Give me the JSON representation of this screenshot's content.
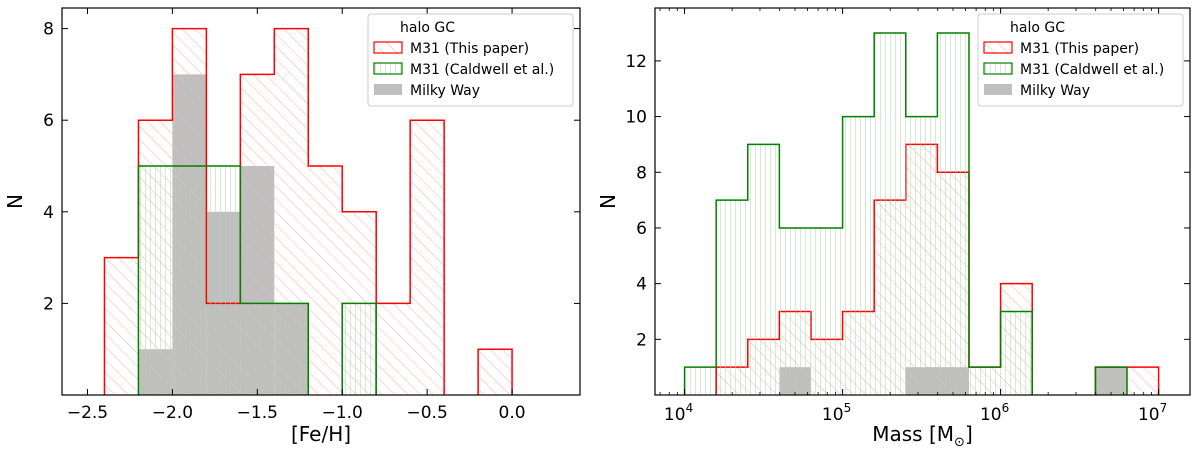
{
  "colors": {
    "m31_this": "#ff0000",
    "m31_caldwell": "#008000",
    "milky_way": "#bfbfbf",
    "hatch": "#f4b0b0",
    "hatch_green": "#a8d6a8"
  },
  "chart_data": [
    {
      "type": "bar",
      "subtype": "step-histogram",
      "xlabel": "[Fe/H]",
      "ylabel": "N",
      "xlim": [
        -2.65,
        0.4
      ],
      "ylim": [
        0,
        8.45
      ],
      "xticks": [
        -2.5,
        -2.0,
        -1.5,
        -1.0,
        -0.5,
        0.0
      ],
      "xtick_labels": [
        "−2.5",
        "−2.0",
        "−1.5",
        "−1.0",
        "−0.5",
        "0.0"
      ],
      "yticks": [
        2,
        4,
        6,
        8
      ],
      "ytick_labels": [
        "2",
        "4",
        "6",
        "8"
      ],
      "legend": {
        "title": "halo GC",
        "placement": "top-right",
        "entries": [
          "M31 (This paper)",
          "M31 (Caldwell et al.)",
          "Milky Way"
        ]
      },
      "series": [
        {
          "name": "M31 (This paper)",
          "style": "step-red-hatched",
          "bins": [
            {
              "x0": -2.4,
              "x1": -2.2,
              "count": 3
            },
            {
              "x0": -2.2,
              "x1": -2.0,
              "count": 6
            },
            {
              "x0": -2.0,
              "x1": -1.8,
              "count": 8
            },
            {
              "x0": -1.8,
              "x1": -1.6,
              "count": 2
            },
            {
              "x0": -1.6,
              "x1": -1.4,
              "count": 7
            },
            {
              "x0": -1.4,
              "x1": -1.2,
              "count": 8
            },
            {
              "x0": -1.2,
              "x1": -1.0,
              "count": 5
            },
            {
              "x0": -1.0,
              "x1": -0.8,
              "count": 4
            },
            {
              "x0": -0.8,
              "x1": -0.6,
              "count": 2
            },
            {
              "x0": -0.6,
              "x1": -0.4,
              "count": 6
            },
            {
              "x0": -0.2,
              "x1": 0.0,
              "count": 1
            }
          ]
        },
        {
          "name": "M31 (Caldwell et al.)",
          "style": "step-green-hatched",
          "bins": [
            {
              "x0": -2.2,
              "x1": -2.0,
              "count": 5
            },
            {
              "x0": -2.0,
              "x1": -1.8,
              "count": 5
            },
            {
              "x0": -1.8,
              "x1": -1.6,
              "count": 5
            },
            {
              "x0": -1.6,
              "x1": -1.4,
              "count": 2
            },
            {
              "x0": -1.4,
              "x1": -1.2,
              "count": 2
            },
            {
              "x0": -1.0,
              "x1": -0.8,
              "count": 2
            }
          ]
        },
        {
          "name": "Milky Way",
          "style": "filled-grey",
          "bins": [
            {
              "x0": -2.2,
              "x1": -2.0,
              "count": 1
            },
            {
              "x0": -2.0,
              "x1": -1.8,
              "count": 7
            },
            {
              "x0": -1.8,
              "x1": -1.6,
              "count": 4
            },
            {
              "x0": -1.6,
              "x1": -1.4,
              "count": 5
            },
            {
              "x0": -1.4,
              "x1": -1.2,
              "count": 2
            }
          ]
        }
      ]
    },
    {
      "type": "bar",
      "subtype": "step-histogram",
      "xscale": "log",
      "xlabel": "Mass [M⊙]",
      "ylabel": "N",
      "xlim": [
        6500,
        15800000
      ],
      "ylim": [
        0,
        13.9
      ],
      "xticks": [
        10000,
        100000,
        1000000,
        10000000
      ],
      "xtick_labels": [
        "10⁴",
        "10⁵",
        "10⁶",
        "10⁷"
      ],
      "yticks": [
        2,
        4,
        6,
        8,
        10,
        12
      ],
      "ytick_labels": [
        "2",
        "4",
        "6",
        "8",
        "10",
        "12"
      ],
      "legend": {
        "title": "halo GC",
        "placement": "top-right",
        "entries": [
          "M31 (This paper)",
          "M31 (Caldwell et al.)",
          "Milky Way"
        ]
      },
      "series": [
        {
          "name": "M31 (This paper)",
          "style": "step-red-hatched",
          "bins": [
            {
              "x0": 15849,
              "x1": 25119,
              "count": 1
            },
            {
              "x0": 25119,
              "x1": 39811,
              "count": 2
            },
            {
              "x0": 39811,
              "x1": 63096,
              "count": 3
            },
            {
              "x0": 63096,
              "x1": 100000,
              "count": 2
            },
            {
              "x0": 100000,
              "x1": 158489,
              "count": 3
            },
            {
              "x0": 158489,
              "x1": 251189,
              "count": 7
            },
            {
              "x0": 251189,
              "x1": 398107,
              "count": 9
            },
            {
              "x0": 398107,
              "x1": 630957,
              "count": 8
            },
            {
              "x0": 630957,
              "x1": 1000000,
              "count": 1
            },
            {
              "x0": 1000000,
              "x1": 1584893,
              "count": 4
            },
            {
              "x0": 3981072,
              "x1": 6309573,
              "count": 1
            },
            {
              "x0": 6309573,
              "x1": 10000000,
              "count": 1
            }
          ]
        },
        {
          "name": "M31 (Caldwell et al.)",
          "style": "step-green-hatched",
          "bins": [
            {
              "x0": 10000,
              "x1": 15849,
              "count": 1
            },
            {
              "x0": 15849,
              "x1": 25119,
              "count": 7
            },
            {
              "x0": 25119,
              "x1": 39811,
              "count": 9
            },
            {
              "x0": 39811,
              "x1": 63096,
              "count": 6
            },
            {
              "x0": 63096,
              "x1": 100000,
              "count": 6
            },
            {
              "x0": 100000,
              "x1": 158489,
              "count": 10
            },
            {
              "x0": 158489,
              "x1": 251189,
              "count": 13
            },
            {
              "x0": 251189,
              "x1": 398107,
              "count": 10
            },
            {
              "x0": 398107,
              "x1": 630957,
              "count": 13
            },
            {
              "x0": 630957,
              "x1": 1000000,
              "count": 1
            },
            {
              "x0": 1000000,
              "x1": 1584893,
              "count": 3
            },
            {
              "x0": 3981072,
              "x1": 6309573,
              "count": 1
            }
          ]
        },
        {
          "name": "Milky Way",
          "style": "filled-grey",
          "bins": [
            {
              "x0": 39811,
              "x1": 63096,
              "count": 1
            },
            {
              "x0": 251189,
              "x1": 630957,
              "count": 1
            },
            {
              "x0": 3981072,
              "x1": 6309573,
              "count": 1
            }
          ]
        }
      ]
    }
  ]
}
